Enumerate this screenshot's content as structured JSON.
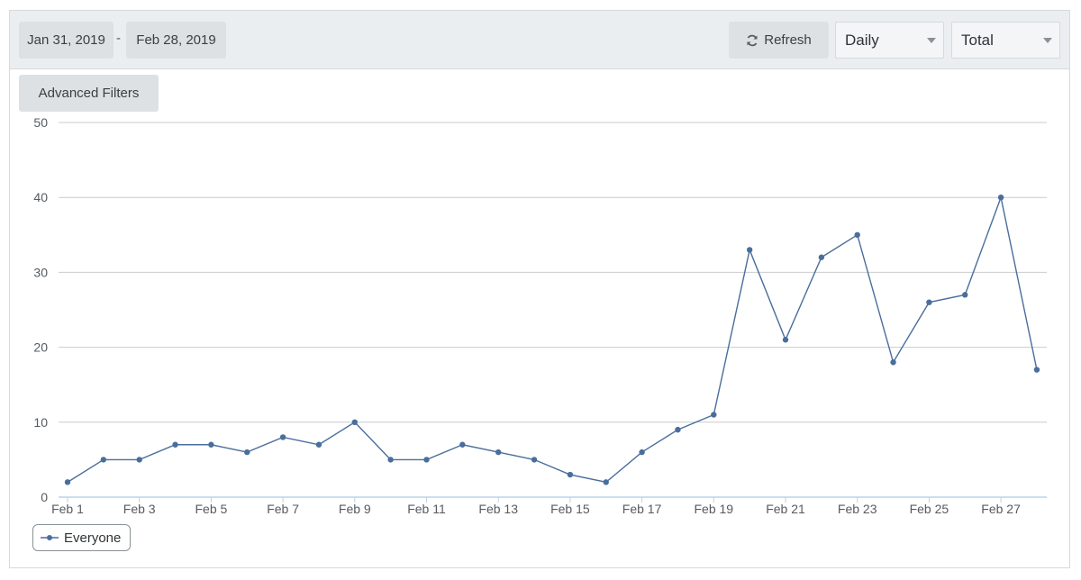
{
  "toolbar": {
    "date_start": "Jan 31, 2019",
    "date_separator": "-",
    "date_end": "Feb 28, 2019",
    "refresh_label": "Refresh",
    "interval_value": "Daily",
    "measure_value": "Total",
    "advanced_filters_label": "Advanced Filters"
  },
  "colors": {
    "series": "#4a6e9c",
    "grid": "#c9ccce",
    "axis": "#bcd3e8"
  },
  "icons": {
    "refresh": "refresh-icon"
  },
  "chart_data": {
    "type": "line",
    "ylim": [
      0,
      50
    ],
    "yticks": [
      0,
      10,
      20,
      30,
      40,
      50
    ],
    "grid": true,
    "legend_position": "bottom-left",
    "x": [
      "Feb 1",
      "Feb 2",
      "Feb 3",
      "Feb 4",
      "Feb 5",
      "Feb 6",
      "Feb 7",
      "Feb 8",
      "Feb 9",
      "Feb 10",
      "Feb 11",
      "Feb 12",
      "Feb 13",
      "Feb 14",
      "Feb 15",
      "Feb 16",
      "Feb 17",
      "Feb 18",
      "Feb 19",
      "Feb 20",
      "Feb 21",
      "Feb 22",
      "Feb 23",
      "Feb 24",
      "Feb 25",
      "Feb 26",
      "Feb 27",
      "Feb 28"
    ],
    "xtick_labels": [
      "Feb 1",
      "Feb 3",
      "Feb 5",
      "Feb 7",
      "Feb 9",
      "Feb 11",
      "Feb 13",
      "Feb 15",
      "Feb 17",
      "Feb 19",
      "Feb 21",
      "Feb 23",
      "Feb 25",
      "Feb 27"
    ],
    "series": [
      {
        "name": "Everyone",
        "values": [
          2,
          5,
          5,
          7,
          7,
          6,
          8,
          7,
          10,
          5,
          5,
          7,
          6,
          5,
          3,
          2,
          6,
          9,
          11,
          33,
          21,
          32,
          35,
          18,
          26,
          27,
          40,
          17
        ]
      }
    ]
  }
}
